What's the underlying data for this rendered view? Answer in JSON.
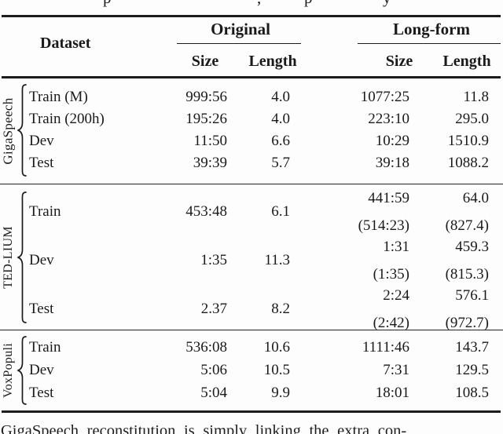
{
  "page": {
    "top_fragments": [
      "p",
      ",",
      "p",
      "y"
    ],
    "bottom_text": "GigaSpeech reconstitution is simply linking the extra con-"
  },
  "table": {
    "header": {
      "dataset": "Dataset",
      "original_label": "Original",
      "longform_label": "Long-form",
      "subheaders": [
        "Size",
        "Length",
        "Size",
        "Length"
      ]
    },
    "sections": [
      {
        "name": "GigaSpeech",
        "rows": [
          {
            "label": "Train (M)",
            "orig_size": "999:56",
            "orig_length": "4.0",
            "lf_size": "1077:25",
            "lf_length": "11.8"
          },
          {
            "label": "Train (200h)",
            "orig_size": "195:26",
            "orig_length": "4.0",
            "lf_size": "223:10",
            "lf_length": "295.0"
          },
          {
            "label": "Dev",
            "orig_size": "11:50",
            "orig_length": "6.6",
            "lf_size": "10:29",
            "lf_length": "1510.9"
          },
          {
            "label": "Test",
            "orig_size": "39:39",
            "orig_length": "5.7",
            "lf_size": "39:18",
            "lf_length": "1088.2"
          }
        ]
      },
      {
        "name": "TED-LIUM",
        "rows": [
          {
            "label": "Train",
            "orig_size": "453:48",
            "orig_length": "6.1",
            "lf_size": "441:59",
            "lf_size2": "(514:23)",
            "lf_length": "64.0",
            "lf_length2": "(827.4)"
          },
          {
            "label": "Dev",
            "orig_size": "1:35",
            "orig_length": "11.3",
            "lf_size": "1:31",
            "lf_size2": "(1:35)",
            "lf_length": "459.3",
            "lf_length2": "(815.3)"
          },
          {
            "label": "Test",
            "orig_size": "2.37",
            "orig_length": "8.2",
            "lf_size": "2:24",
            "lf_size2": "(2:42)",
            "lf_length": "576.1",
            "lf_length2": "(972.7)"
          }
        ]
      },
      {
        "name": "VoxPopuli",
        "rows": [
          {
            "label": "Train",
            "orig_size": "536:08",
            "orig_length": "10.6",
            "lf_size": "1111:46",
            "lf_length": "143.7"
          },
          {
            "label": "Dev",
            "orig_size": "5:06",
            "orig_length": "10.5",
            "lf_size": "7:31",
            "lf_length": "129.5"
          },
          {
            "label": "Test",
            "orig_size": "5:04",
            "orig_length": "9.9",
            "lf_size": "18:01",
            "lf_length": "108.5"
          }
        ]
      }
    ]
  }
}
